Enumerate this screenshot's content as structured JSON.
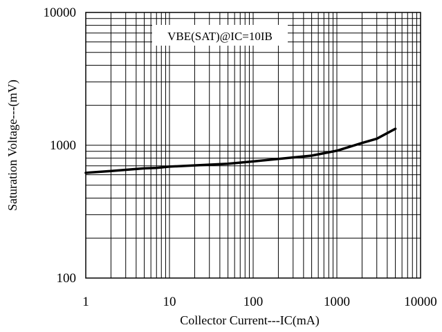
{
  "chart_data": {
    "type": "line",
    "title": "",
    "xlabel": "Collector Current---IC(mA)",
    "ylabel": "Saturation Voltage---(mV)",
    "x_scale": "log",
    "y_scale": "log",
    "xlim": [
      1,
      10000
    ],
    "ylim": [
      100,
      10000
    ],
    "x_ticks": [
      "1",
      "10",
      "100",
      "1000",
      "10000"
    ],
    "y_ticks": [
      "100",
      "1000",
      "10000"
    ],
    "grid": true,
    "annotation": "VBE(SAT)@IC=10IB",
    "series": [
      {
        "color": "#000000",
        "x": [
          1,
          2,
          5,
          7,
          10,
          20,
          50,
          100,
          200,
          500,
          1000,
          2000,
          3000,
          5000
        ],
        "y": [
          620,
          640,
          670,
          675,
          690,
          705,
          725,
          755,
          790,
          835,
          910,
          1040,
          1120,
          1330
        ]
      }
    ]
  }
}
